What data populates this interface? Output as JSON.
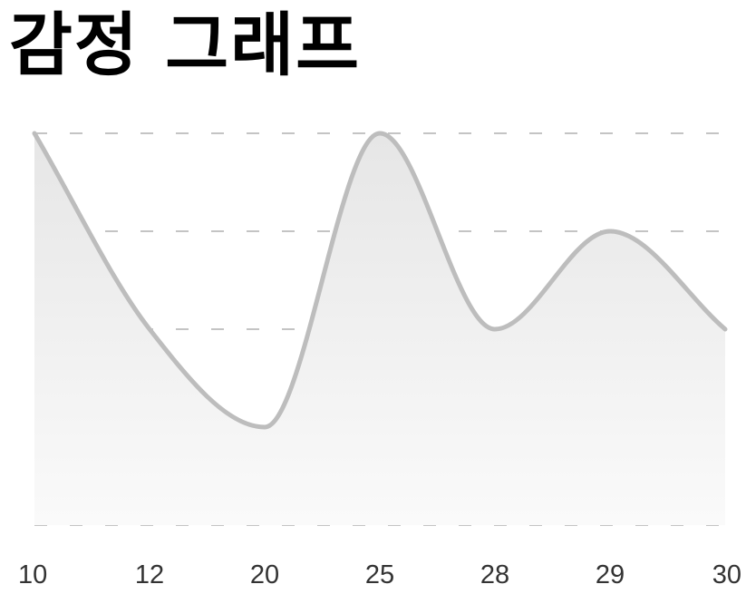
{
  "page": {
    "title": "감정 그래프"
  },
  "chart_data": {
    "type": "area",
    "title": "감정 그래프",
    "xlabel": "",
    "ylabel": "",
    "categories": [
      "10",
      "12",
      "20",
      "25",
      "28",
      "29",
      "30"
    ],
    "series": [
      {
        "values": [
          5,
          3,
          2,
          5,
          3,
          4,
          3
        ]
      }
    ],
    "ylim": [
      1,
      5
    ],
    "grid": true,
    "legend": "none",
    "colors": {
      "line": "#bdbdbd",
      "fill_top": "#e6e6e6",
      "fill_bottom": "#fafafa",
      "grid": "#c4c4c4",
      "tick_text": "#333333"
    }
  }
}
